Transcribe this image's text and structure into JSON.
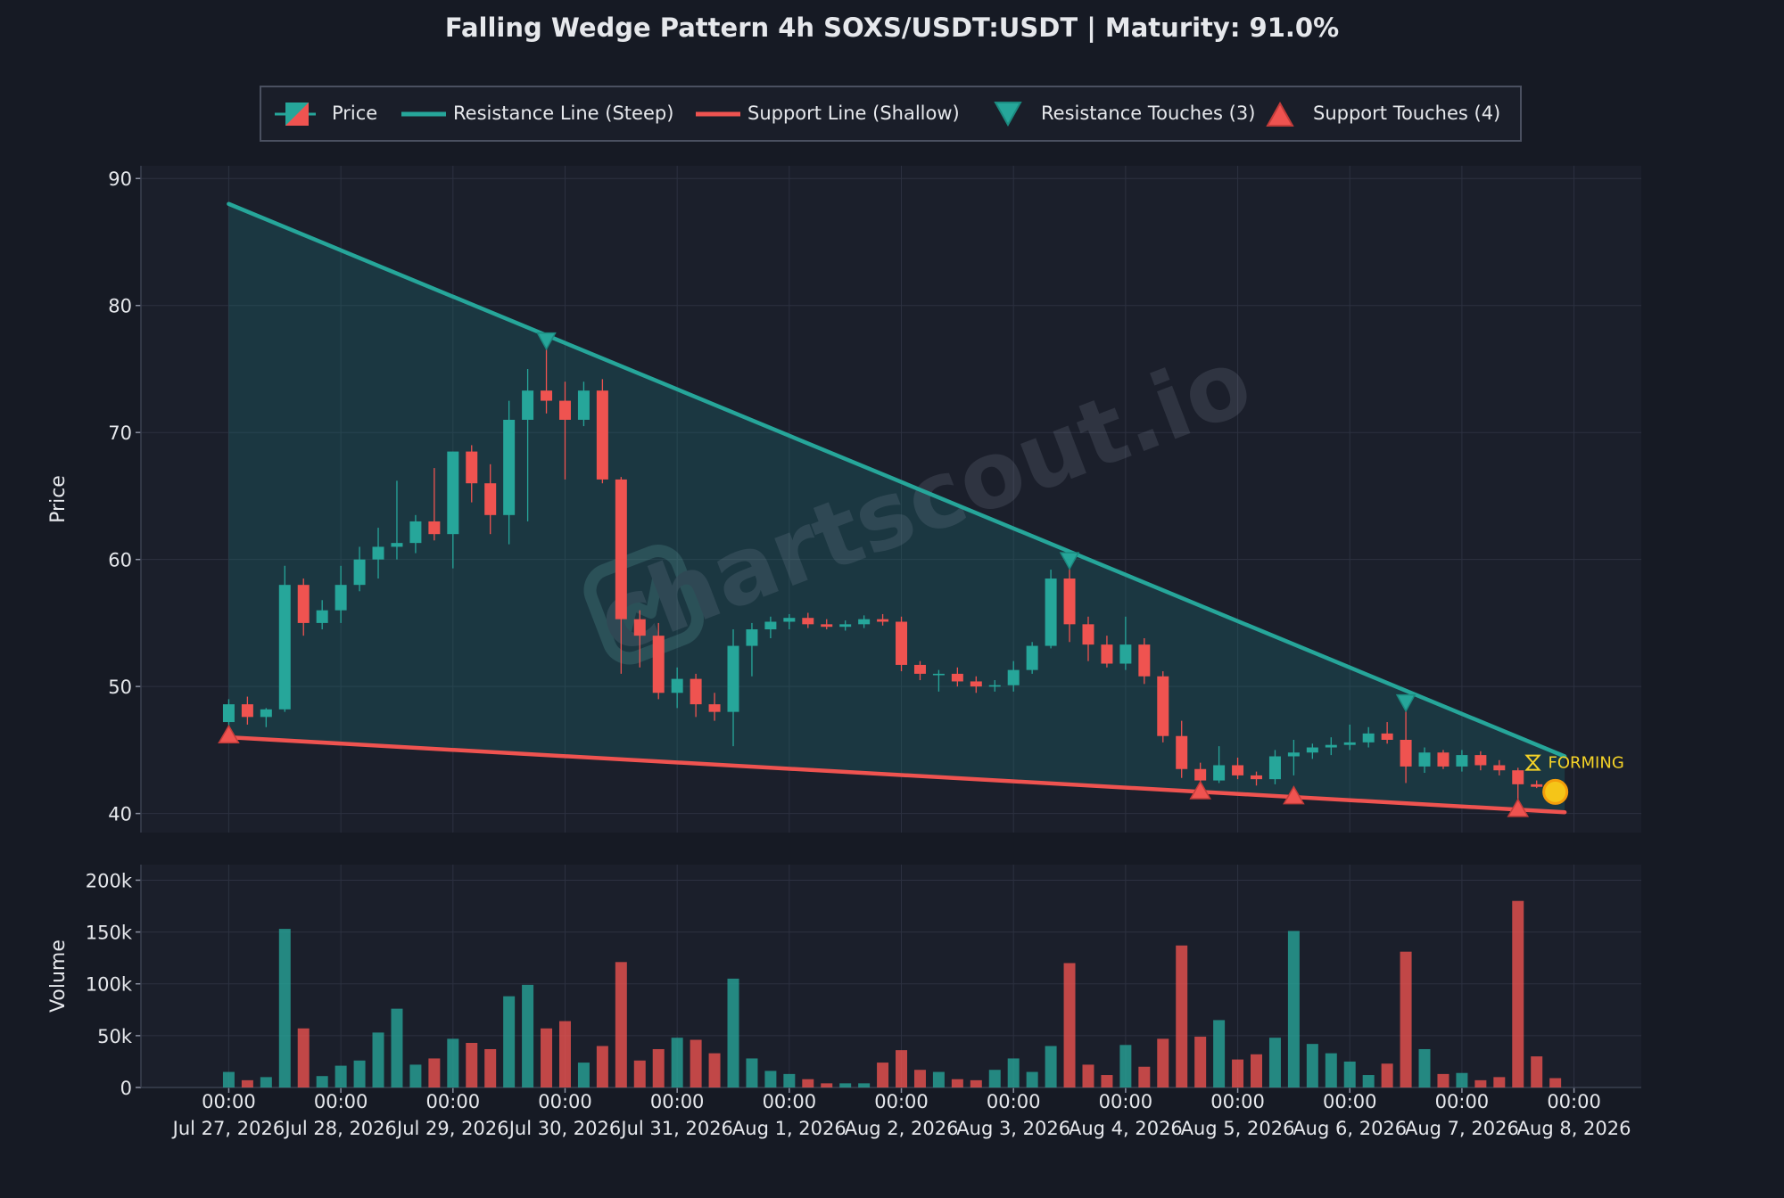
{
  "chart_data": {
    "type": "candlestick",
    "title": "Falling Wedge Pattern 4h SOXS/USDT:USDT | Maturity: 91.0%",
    "ylabel": "Price",
    "volume_label": "Volume",
    "price_ylim": [
      38.5,
      91
    ],
    "price_yticks": [
      40,
      50,
      60,
      70,
      80,
      90
    ],
    "volume_ylim": [
      0,
      215000
    ],
    "volume_yticks": [
      0,
      50000,
      100000,
      150000,
      200000
    ],
    "volume_ytick_labels": [
      "0",
      "50k",
      "100k",
      "150k",
      "200k"
    ],
    "x_ticks": [
      {
        "t": 0,
        "time": "00:00",
        "date": "Jul 27, 2026"
      },
      {
        "t": 6,
        "time": "00:00",
        "date": "Jul 28, 2026"
      },
      {
        "t": 12,
        "time": "00:00",
        "date": "Jul 29, 2026"
      },
      {
        "t": 18,
        "time": "00:00",
        "date": "Jul 30, 2026"
      },
      {
        "t": 24,
        "time": "00:00",
        "date": "Jul 31, 2026"
      },
      {
        "t": 30,
        "time": "00:00",
        "date": "Aug 1, 2026"
      },
      {
        "t": 36,
        "time": "00:00",
        "date": "Aug 2, 2026"
      },
      {
        "t": 42,
        "time": "00:00",
        "date": "Aug 3, 2026"
      },
      {
        "t": 48,
        "time": "00:00",
        "date": "Aug 4, 2026"
      },
      {
        "t": 54,
        "time": "00:00",
        "date": "Aug 5, 2026"
      },
      {
        "t": 60,
        "time": "00:00",
        "date": "Aug 6, 2026"
      },
      {
        "t": 66,
        "time": "00:00",
        "date": "Aug 7, 2026"
      },
      {
        "t": 72,
        "time": "00:00",
        "date": "Aug 8, 2026"
      }
    ],
    "x_range": [
      -4.7,
      75.6
    ],
    "candles": [
      {
        "t": 0,
        "o": 47.2,
        "h": 49.0,
        "l": 46.5,
        "c": 48.6,
        "v": 15000
      },
      {
        "t": 1,
        "o": 48.6,
        "h": 49.2,
        "l": 47.0,
        "c": 47.6,
        "v": 7000
      },
      {
        "t": 2,
        "o": 47.6,
        "h": 48.3,
        "l": 46.8,
        "c": 48.2,
        "v": 10000
      },
      {
        "t": 3,
        "o": 48.2,
        "h": 59.5,
        "l": 48.0,
        "c": 58.0,
        "v": 153000
      },
      {
        "t": 4,
        "o": 58.0,
        "h": 58.5,
        "l": 54.0,
        "c": 55.0,
        "v": 57000
      },
      {
        "t": 5,
        "o": 55.0,
        "h": 56.8,
        "l": 54.5,
        "c": 56.0,
        "v": 11000
      },
      {
        "t": 6,
        "o": 56.0,
        "h": 59.5,
        "l": 55.0,
        "c": 58.0,
        "v": 21000
      },
      {
        "t": 7,
        "o": 58.0,
        "h": 61.0,
        "l": 57.5,
        "c": 60.0,
        "v": 26000
      },
      {
        "t": 8,
        "o": 60.0,
        "h": 62.5,
        "l": 58.5,
        "c": 61.0,
        "v": 53000
      },
      {
        "t": 9,
        "o": 61.0,
        "h": 66.2,
        "l": 60.0,
        "c": 61.3,
        "v": 76000
      },
      {
        "t": 10,
        "o": 61.3,
        "h": 63.5,
        "l": 60.5,
        "c": 63.0,
        "v": 22000
      },
      {
        "t": 11,
        "o": 63.0,
        "h": 67.2,
        "l": 61.5,
        "c": 62.0,
        "v": 28000
      },
      {
        "t": 12,
        "o": 62.0,
        "h": 68.5,
        "l": 59.3,
        "c": 68.5,
        "v": 47000
      },
      {
        "t": 13,
        "o": 68.5,
        "h": 69.0,
        "l": 64.5,
        "c": 66.0,
        "v": 43000
      },
      {
        "t": 14,
        "o": 66.0,
        "h": 67.5,
        "l": 62.0,
        "c": 63.5,
        "v": 37000
      },
      {
        "t": 15,
        "o": 63.5,
        "h": 72.5,
        "l": 61.2,
        "c": 71.0,
        "v": 88000
      },
      {
        "t": 16,
        "o": 71.0,
        "h": 75.0,
        "l": 63.0,
        "c": 73.3,
        "v": 99000
      },
      {
        "t": 17,
        "o": 73.3,
        "h": 77.0,
        "l": 71.5,
        "c": 72.5,
        "v": 57000
      },
      {
        "t": 18,
        "o": 72.5,
        "h": 74.0,
        "l": 66.3,
        "c": 71.0,
        "v": 64000
      },
      {
        "t": 19,
        "o": 71.0,
        "h": 74.0,
        "l": 70.5,
        "c": 73.3,
        "v": 24000
      },
      {
        "t": 20,
        "o": 73.3,
        "h": 74.2,
        "l": 66.0,
        "c": 66.3,
        "v": 40000
      },
      {
        "t": 21,
        "o": 66.3,
        "h": 66.5,
        "l": 51.0,
        "c": 55.3,
        "v": 121000
      },
      {
        "t": 22,
        "o": 55.3,
        "h": 56.0,
        "l": 51.5,
        "c": 54.0,
        "v": 26000
      },
      {
        "t": 23,
        "o": 54.0,
        "h": 55.0,
        "l": 49.0,
        "c": 49.5,
        "v": 37000
      },
      {
        "t": 24,
        "o": 49.5,
        "h": 51.5,
        "l": 48.3,
        "c": 50.6,
        "v": 48000
      },
      {
        "t": 25,
        "o": 50.6,
        "h": 51.0,
        "l": 47.6,
        "c": 48.6,
        "v": 46000
      },
      {
        "t": 26,
        "o": 48.6,
        "h": 49.5,
        "l": 47.3,
        "c": 48.0,
        "v": 33000
      },
      {
        "t": 27,
        "o": 48.0,
        "h": 54.5,
        "l": 45.3,
        "c": 53.2,
        "v": 105000
      },
      {
        "t": 28,
        "o": 53.2,
        "h": 55.0,
        "l": 50.8,
        "c": 54.5,
        "v": 28000
      },
      {
        "t": 29,
        "o": 54.5,
        "h": 55.5,
        "l": 53.8,
        "c": 55.1,
        "v": 16000
      },
      {
        "t": 30,
        "o": 55.1,
        "h": 55.7,
        "l": 54.5,
        "c": 55.4,
        "v": 13000
      },
      {
        "t": 31,
        "o": 55.4,
        "h": 55.8,
        "l": 54.6,
        "c": 54.9,
        "v": 8000
      },
      {
        "t": 32,
        "o": 54.9,
        "h": 55.3,
        "l": 54.5,
        "c": 54.7,
        "v": 4000
      },
      {
        "t": 33,
        "o": 54.7,
        "h": 55.2,
        "l": 54.4,
        "c": 54.9,
        "v": 4000
      },
      {
        "t": 34,
        "o": 54.9,
        "h": 55.6,
        "l": 54.6,
        "c": 55.3,
        "v": 4000
      },
      {
        "t": 35,
        "o": 55.3,
        "h": 55.7,
        "l": 54.8,
        "c": 55.1,
        "v": 24000
      },
      {
        "t": 36,
        "o": 55.1,
        "h": 55.5,
        "l": 51.2,
        "c": 51.7,
        "v": 36000
      },
      {
        "t": 37,
        "o": 51.7,
        "h": 52.0,
        "l": 50.5,
        "c": 51.0,
        "v": 17000
      },
      {
        "t": 38,
        "o": 51.0,
        "h": 51.3,
        "l": 49.6,
        "c": 51.0,
        "v": 15000
      },
      {
        "t": 39,
        "o": 51.0,
        "h": 51.5,
        "l": 50.0,
        "c": 50.4,
        "v": 8000
      },
      {
        "t": 40,
        "o": 50.4,
        "h": 50.8,
        "l": 49.5,
        "c": 50.0,
        "v": 7000
      },
      {
        "t": 41,
        "o": 50.0,
        "h": 50.5,
        "l": 49.6,
        "c": 50.1,
        "v": 17000
      },
      {
        "t": 42,
        "o": 50.1,
        "h": 52.0,
        "l": 49.6,
        "c": 51.3,
        "v": 28000
      },
      {
        "t": 43,
        "o": 51.3,
        "h": 53.5,
        "l": 51.0,
        "c": 53.2,
        "v": 15000
      },
      {
        "t": 44,
        "o": 53.2,
        "h": 59.2,
        "l": 53.0,
        "c": 58.5,
        "v": 40000
      },
      {
        "t": 45,
        "o": 58.5,
        "h": 59.8,
        "l": 53.5,
        "c": 54.9,
        "v": 120000
      },
      {
        "t": 46,
        "o": 54.9,
        "h": 55.5,
        "l": 52.0,
        "c": 53.3,
        "v": 22000
      },
      {
        "t": 47,
        "o": 53.3,
        "h": 54.0,
        "l": 51.5,
        "c": 51.8,
        "v": 12000
      },
      {
        "t": 48,
        "o": 51.8,
        "h": 55.5,
        "l": 51.3,
        "c": 53.3,
        "v": 41000
      },
      {
        "t": 49,
        "o": 53.3,
        "h": 53.8,
        "l": 50.2,
        "c": 50.8,
        "v": 20000
      },
      {
        "t": 50,
        "o": 50.8,
        "h": 51.2,
        "l": 45.6,
        "c": 46.1,
        "v": 47000
      },
      {
        "t": 51,
        "o": 46.1,
        "h": 47.3,
        "l": 42.8,
        "c": 43.5,
        "v": 137000
      },
      {
        "t": 52,
        "o": 43.5,
        "h": 44.0,
        "l": 42.0,
        "c": 42.6,
        "v": 49000
      },
      {
        "t": 53,
        "o": 42.6,
        "h": 45.3,
        "l": 42.4,
        "c": 43.8,
        "v": 65000
      },
      {
        "t": 54,
        "o": 43.8,
        "h": 44.4,
        "l": 42.7,
        "c": 43.0,
        "v": 27000
      },
      {
        "t": 55,
        "o": 43.0,
        "h": 43.3,
        "l": 42.2,
        "c": 42.7,
        "v": 32000
      },
      {
        "t": 56,
        "o": 42.7,
        "h": 45.0,
        "l": 42.3,
        "c": 44.5,
        "v": 48000
      },
      {
        "t": 57,
        "o": 44.5,
        "h": 45.8,
        "l": 43.0,
        "c": 44.8,
        "v": 151000
      },
      {
        "t": 58,
        "o": 44.8,
        "h": 45.5,
        "l": 44.3,
        "c": 45.2,
        "v": 42000
      },
      {
        "t": 59,
        "o": 45.2,
        "h": 46.0,
        "l": 44.6,
        "c": 45.4,
        "v": 33000
      },
      {
        "t": 60,
        "o": 45.4,
        "h": 47.0,
        "l": 45.0,
        "c": 45.6,
        "v": 25000
      },
      {
        "t": 61,
        "o": 45.6,
        "h": 46.8,
        "l": 45.2,
        "c": 46.3,
        "v": 12000
      },
      {
        "t": 62,
        "o": 46.3,
        "h": 47.2,
        "l": 45.5,
        "c": 45.8,
        "v": 23000
      },
      {
        "t": 63,
        "o": 45.8,
        "h": 48.6,
        "l": 42.4,
        "c": 43.7,
        "v": 131000
      },
      {
        "t": 64,
        "o": 43.7,
        "h": 45.2,
        "l": 43.2,
        "c": 44.8,
        "v": 37000
      },
      {
        "t": 65,
        "o": 44.8,
        "h": 45.0,
        "l": 43.5,
        "c": 43.7,
        "v": 13000
      },
      {
        "t": 66,
        "o": 43.7,
        "h": 45.0,
        "l": 43.3,
        "c": 44.6,
        "v": 14000
      },
      {
        "t": 67,
        "o": 44.6,
        "h": 44.9,
        "l": 43.4,
        "c": 43.8,
        "v": 7000
      },
      {
        "t": 68,
        "o": 43.8,
        "h": 44.2,
        "l": 43.0,
        "c": 43.4,
        "v": 10000
      },
      {
        "t": 69,
        "o": 43.4,
        "h": 43.6,
        "l": 40.5,
        "c": 42.3,
        "v": 180000
      },
      {
        "t": 70,
        "o": 42.3,
        "h": 42.6,
        "l": 42.0,
        "c": 42.1,
        "v": 30000
      },
      {
        "t": 71,
        "o": 42.1,
        "h": 42.3,
        "l": 41.9,
        "c": 42.0,
        "v": 9000
      }
    ],
    "resistance_line": {
      "name": "Resistance Line (Steep)",
      "points": [
        [
          0,
          88.0
        ],
        [
          71.5,
          44.5
        ]
      ],
      "color": "#26a69a"
    },
    "support_line": {
      "name": "Support Line (Shallow)",
      "points": [
        [
          0,
          46.0
        ],
        [
          71.5,
          40.1
        ]
      ],
      "color": "#ef5350"
    },
    "resistance_touches": {
      "name": "Resistance Touches (3)",
      "points": [
        [
          17,
          77.2
        ],
        [
          45,
          59.9
        ],
        [
          63,
          48.7
        ]
      ]
    },
    "support_touches": {
      "name": "Support Touches (4)",
      "points": [
        [
          0,
          46.2
        ],
        [
          52,
          41.8
        ],
        [
          57,
          41.4
        ],
        [
          69,
          40.4
        ]
      ]
    },
    "forming_marker": {
      "t": 69.8,
      "y": 44.0,
      "label": "FORMING"
    },
    "current_point": {
      "t": 71.0,
      "y": 41.7
    },
    "legend": {
      "placement": "top-center",
      "items": [
        "Price",
        "Resistance Line (Steep)",
        "Support Line (Shallow)",
        "Resistance Touches (3)",
        "Support Touches (4)"
      ]
    },
    "watermark": "chartscout.io",
    "colors": {
      "up": "#26a69a",
      "down": "#ef5350",
      "background": "#161a24",
      "plot_background": "#1b1f2b",
      "wedge_fill": "#1f6f75",
      "forming": "#f5d327",
      "current": "#f5c518",
      "grid": "#2c3140",
      "text": "#e6e8ec"
    },
    "grid": true
  }
}
